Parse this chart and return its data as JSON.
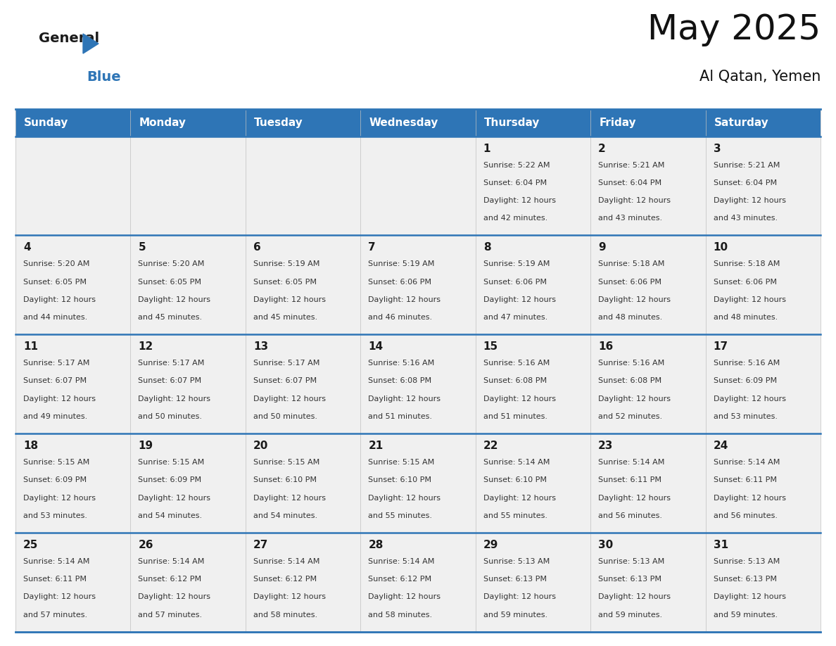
{
  "title": "May 2025",
  "subtitle": "Al Qatan, Yemen",
  "header_bg_color": "#2E75B6",
  "header_text_color": "#FFFFFF",
  "cell_bg_color": "#F0F0F0",
  "border_color": "#2E75B6",
  "day_number_color": "#1A1A1A",
  "cell_text_color": "#333333",
  "bg_color": "#FFFFFF",
  "days_of_week": [
    "Sunday",
    "Monday",
    "Tuesday",
    "Wednesday",
    "Thursday",
    "Friday",
    "Saturday"
  ],
  "calendar_data": [
    [
      {
        "day": "",
        "sunrise": "",
        "sunset": "",
        "daylight_h": "",
        "daylight_m": ""
      },
      {
        "day": "",
        "sunrise": "",
        "sunset": "",
        "daylight_h": "",
        "daylight_m": ""
      },
      {
        "day": "",
        "sunrise": "",
        "sunset": "",
        "daylight_h": "",
        "daylight_m": ""
      },
      {
        "day": "",
        "sunrise": "",
        "sunset": "",
        "daylight_h": "",
        "daylight_m": ""
      },
      {
        "day": "1",
        "sunrise": "5:22 AM",
        "sunset": "6:04 PM",
        "daylight_h": "12 hours",
        "daylight_m": "and 42 minutes."
      },
      {
        "day": "2",
        "sunrise": "5:21 AM",
        "sunset": "6:04 PM",
        "daylight_h": "12 hours",
        "daylight_m": "and 43 minutes."
      },
      {
        "day": "3",
        "sunrise": "5:21 AM",
        "sunset": "6:04 PM",
        "daylight_h": "12 hours",
        "daylight_m": "and 43 minutes."
      }
    ],
    [
      {
        "day": "4",
        "sunrise": "5:20 AM",
        "sunset": "6:05 PM",
        "daylight_h": "12 hours",
        "daylight_m": "and 44 minutes."
      },
      {
        "day": "5",
        "sunrise": "5:20 AM",
        "sunset": "6:05 PM",
        "daylight_h": "12 hours",
        "daylight_m": "and 45 minutes."
      },
      {
        "day": "6",
        "sunrise": "5:19 AM",
        "sunset": "6:05 PM",
        "daylight_h": "12 hours",
        "daylight_m": "and 45 minutes."
      },
      {
        "day": "7",
        "sunrise": "5:19 AM",
        "sunset": "6:06 PM",
        "daylight_h": "12 hours",
        "daylight_m": "and 46 minutes."
      },
      {
        "day": "8",
        "sunrise": "5:19 AM",
        "sunset": "6:06 PM",
        "daylight_h": "12 hours",
        "daylight_m": "and 47 minutes."
      },
      {
        "day": "9",
        "sunrise": "5:18 AM",
        "sunset": "6:06 PM",
        "daylight_h": "12 hours",
        "daylight_m": "and 48 minutes."
      },
      {
        "day": "10",
        "sunrise": "5:18 AM",
        "sunset": "6:06 PM",
        "daylight_h": "12 hours",
        "daylight_m": "and 48 minutes."
      }
    ],
    [
      {
        "day": "11",
        "sunrise": "5:17 AM",
        "sunset": "6:07 PM",
        "daylight_h": "12 hours",
        "daylight_m": "and 49 minutes."
      },
      {
        "day": "12",
        "sunrise": "5:17 AM",
        "sunset": "6:07 PM",
        "daylight_h": "12 hours",
        "daylight_m": "and 50 minutes."
      },
      {
        "day": "13",
        "sunrise": "5:17 AM",
        "sunset": "6:07 PM",
        "daylight_h": "12 hours",
        "daylight_m": "and 50 minutes."
      },
      {
        "day": "14",
        "sunrise": "5:16 AM",
        "sunset": "6:08 PM",
        "daylight_h": "12 hours",
        "daylight_m": "and 51 minutes."
      },
      {
        "day": "15",
        "sunrise": "5:16 AM",
        "sunset": "6:08 PM",
        "daylight_h": "12 hours",
        "daylight_m": "and 51 minutes."
      },
      {
        "day": "16",
        "sunrise": "5:16 AM",
        "sunset": "6:08 PM",
        "daylight_h": "12 hours",
        "daylight_m": "and 52 minutes."
      },
      {
        "day": "17",
        "sunrise": "5:16 AM",
        "sunset": "6:09 PM",
        "daylight_h": "12 hours",
        "daylight_m": "and 53 minutes."
      }
    ],
    [
      {
        "day": "18",
        "sunrise": "5:15 AM",
        "sunset": "6:09 PM",
        "daylight_h": "12 hours",
        "daylight_m": "and 53 minutes."
      },
      {
        "day": "19",
        "sunrise": "5:15 AM",
        "sunset": "6:09 PM",
        "daylight_h": "12 hours",
        "daylight_m": "and 54 minutes."
      },
      {
        "day": "20",
        "sunrise": "5:15 AM",
        "sunset": "6:10 PM",
        "daylight_h": "12 hours",
        "daylight_m": "and 54 minutes."
      },
      {
        "day": "21",
        "sunrise": "5:15 AM",
        "sunset": "6:10 PM",
        "daylight_h": "12 hours",
        "daylight_m": "and 55 minutes."
      },
      {
        "day": "22",
        "sunrise": "5:14 AM",
        "sunset": "6:10 PM",
        "daylight_h": "12 hours",
        "daylight_m": "and 55 minutes."
      },
      {
        "day": "23",
        "sunrise": "5:14 AM",
        "sunset": "6:11 PM",
        "daylight_h": "12 hours",
        "daylight_m": "and 56 minutes."
      },
      {
        "day": "24",
        "sunrise": "5:14 AM",
        "sunset": "6:11 PM",
        "daylight_h": "12 hours",
        "daylight_m": "and 56 minutes."
      }
    ],
    [
      {
        "day": "25",
        "sunrise": "5:14 AM",
        "sunset": "6:11 PM",
        "daylight_h": "12 hours",
        "daylight_m": "and 57 minutes."
      },
      {
        "day": "26",
        "sunrise": "5:14 AM",
        "sunset": "6:12 PM",
        "daylight_h": "12 hours",
        "daylight_m": "and 57 minutes."
      },
      {
        "day": "27",
        "sunrise": "5:14 AM",
        "sunset": "6:12 PM",
        "daylight_h": "12 hours",
        "daylight_m": "and 58 minutes."
      },
      {
        "day": "28",
        "sunrise": "5:14 AM",
        "sunset": "6:12 PM",
        "daylight_h": "12 hours",
        "daylight_m": "and 58 minutes."
      },
      {
        "day": "29",
        "sunrise": "5:13 AM",
        "sunset": "6:13 PM",
        "daylight_h": "12 hours",
        "daylight_m": "and 59 minutes."
      },
      {
        "day": "30",
        "sunrise": "5:13 AM",
        "sunset": "6:13 PM",
        "daylight_h": "12 hours",
        "daylight_m": "and 59 minutes."
      },
      {
        "day": "31",
        "sunrise": "5:13 AM",
        "sunset": "6:13 PM",
        "daylight_h": "12 hours",
        "daylight_m": "and 59 minutes."
      }
    ]
  ],
  "logo_text_general": "General",
  "logo_text_blue": "Blue",
  "logo_color_general": "#1A1A1A",
  "logo_color_blue": "#2E75B6",
  "logo_triangle_color": "#2E75B6",
  "title_fontsize": 36,
  "subtitle_fontsize": 15,
  "header_fontsize": 11,
  "day_num_fontsize": 11,
  "cell_fontsize": 8.0
}
